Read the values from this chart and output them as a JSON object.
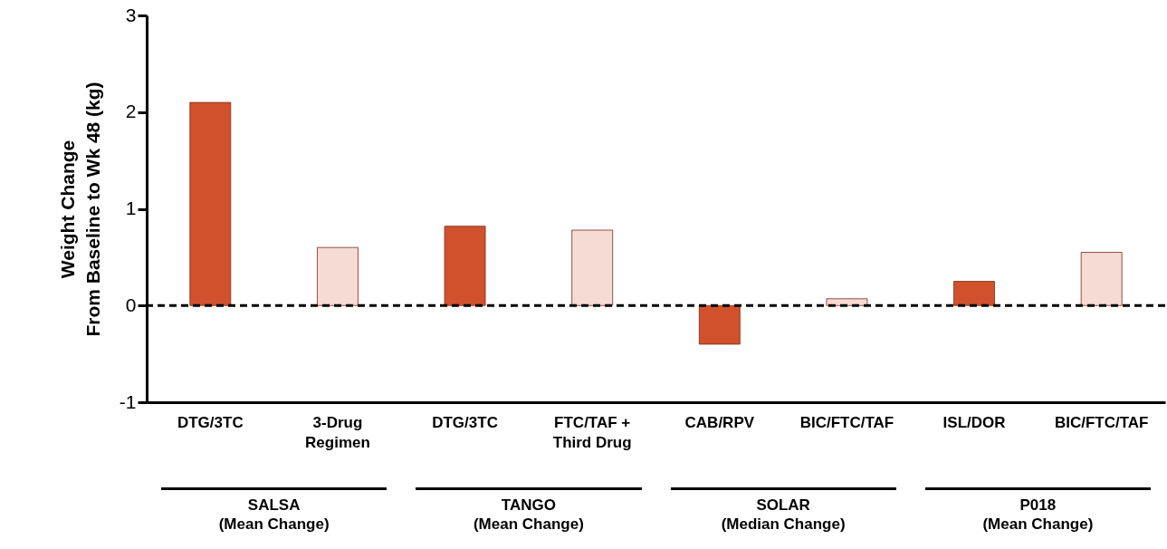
{
  "chart_data": {
    "type": "bar",
    "ylabel": "Weight Change\nFrom Baseline to Wk 48 (kg)",
    "categories": [
      "DTG/3TC",
      "3-Drug\nRegimen",
      "DTG/3TC",
      "FTC/TAF +\nThird Drug",
      "CAB/RPV",
      "BIC/FTC/TAF",
      "ISL/DOR",
      "BIC/FTC/TAF"
    ],
    "values": [
      2.1,
      0.6,
      0.82,
      0.78,
      -0.4,
      0.07,
      0.25,
      0.55
    ],
    "colors": [
      "#d1512d",
      "#f6dbd5",
      "#d1512d",
      "#f6dbd5",
      "#d1512d",
      "#f6dbd5",
      "#d1512d",
      "#f6dbd5"
    ],
    "ylim": [
      -1,
      3
    ],
    "yticks": [
      -1,
      0,
      1,
      2,
      3
    ],
    "ref_lines": [
      {
        "axis": "y",
        "value": 0,
        "line_style": "dashed",
        "color": "#000000"
      }
    ],
    "annotations": [
      "SALSA\n(Mean Change)",
      "TANGO\n(Mean Change)",
      "SOLAR\n(Median Change)",
      "P018\n(Mean Change)"
    ],
    "grid": false
  }
}
